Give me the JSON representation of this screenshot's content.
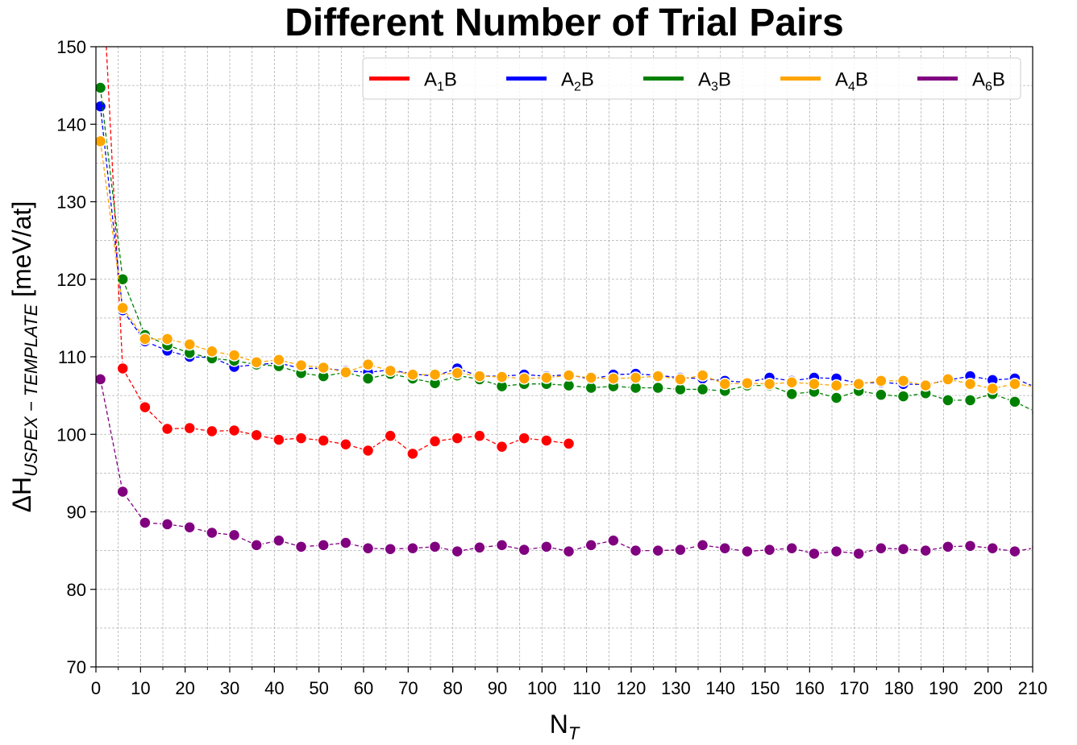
{
  "chart_data": {
    "type": "line",
    "title": "Different Number of Trial Pairs",
    "xlabel_main": "N",
    "xlabel_sub": "T",
    "ylabel_main": "ΔH",
    "ylabel_sub": "USPEX − TEMPLATE",
    "ylabel_unit": " [meV/at]",
    "xlim": [
      0,
      210
    ],
    "ylim": [
      70,
      150
    ],
    "xticks": [
      0,
      10,
      20,
      30,
      40,
      50,
      60,
      70,
      80,
      90,
      100,
      110,
      120,
      130,
      140,
      150,
      160,
      170,
      180,
      190,
      200,
      210
    ],
    "yticks": [
      70,
      80,
      90,
      100,
      110,
      120,
      130,
      140,
      150
    ],
    "grid": true,
    "legend_position": "top-right",
    "series": [
      {
        "name": "A1B",
        "label_main": "A",
        "label_sub": "1",
        "label_tail": "B",
        "color": "#ff0000",
        "x": [
          1,
          6,
          11,
          16,
          21,
          26,
          31,
          36,
          41,
          46,
          51,
          56,
          61,
          66,
          71,
          76,
          81,
          86,
          91,
          96,
          101,
          106
        ],
        "y": [
          165.0,
          108.5,
          103.5,
          100.7,
          100.8,
          100.4,
          100.5,
          99.9,
          99.3,
          99.5,
          99.2,
          98.7,
          97.9,
          99.8,
          97.5,
          99.1,
          99.5,
          99.8,
          98.4,
          99.5,
          99.2,
          98.8
        ]
      },
      {
        "name": "A2B",
        "label_main": "A",
        "label_sub": "2",
        "label_tail": "B",
        "color": "#0000ff",
        "x": [
          1,
          6,
          11,
          16,
          21,
          26,
          31,
          36,
          41,
          46,
          51,
          56,
          61,
          66,
          71,
          76,
          81,
          86,
          91,
          96,
          101,
          106,
          111,
          116,
          121,
          126,
          131,
          136,
          141,
          146,
          151,
          156,
          161,
          166,
          171,
          176,
          181,
          186,
          191,
          196,
          201,
          206,
          211
        ],
        "y": [
          142.3,
          116.0,
          112.0,
          110.8,
          110.0,
          109.9,
          108.7,
          109.0,
          109.2,
          108.5,
          108.5,
          108.2,
          108.0,
          108.3,
          107.8,
          107.5,
          108.5,
          107.5,
          107.5,
          107.7,
          107.5,
          107.7,
          107.1,
          107.7,
          107.8,
          107.6,
          107.3,
          107.2,
          106.9,
          106.7,
          107.3,
          106.9,
          107.3,
          107.2,
          106.6,
          106.7,
          106.5,
          106.4,
          107.0,
          107.5,
          107.0,
          107.2,
          106.0
        ]
      },
      {
        "name": "A3B",
        "label_main": "A",
        "label_sub": "3",
        "label_tail": "B",
        "color": "#008000",
        "x": [
          1,
          6,
          11,
          16,
          21,
          26,
          31,
          36,
          41,
          46,
          51,
          56,
          61,
          66,
          71,
          76,
          81,
          86,
          91,
          96,
          101,
          106,
          111,
          116,
          121,
          126,
          131,
          136,
          141,
          146,
          151,
          156,
          161,
          166,
          171,
          176,
          181,
          186,
          191,
          196,
          201,
          206,
          211
        ],
        "y": [
          144.7,
          120.0,
          112.8,
          111.5,
          110.5,
          109.8,
          109.5,
          109.0,
          108.8,
          107.9,
          107.5,
          108.0,
          107.2,
          107.8,
          107.2,
          106.6,
          107.6,
          107.1,
          106.2,
          106.5,
          106.5,
          106.3,
          106.0,
          106.2,
          106.0,
          106.0,
          105.8,
          105.8,
          105.6,
          106.3,
          106.3,
          105.2,
          105.5,
          104.7,
          105.6,
          105.1,
          104.9,
          105.3,
          104.4,
          104.4,
          105.2,
          104.2,
          102.8
        ]
      },
      {
        "name": "A4B",
        "label_main": "A",
        "label_sub": "4",
        "label_tail": "B",
        "color": "#ffa500",
        "x": [
          1,
          6,
          11,
          16,
          21,
          26,
          31,
          36,
          41,
          46,
          51,
          56,
          61,
          66,
          71,
          76,
          81,
          86,
          91,
          96,
          101,
          106,
          111,
          116,
          121,
          126,
          131,
          136,
          141,
          146,
          151,
          156,
          161,
          166,
          171,
          176,
          181,
          186,
          191,
          196,
          201,
          206,
          211
        ],
        "y": [
          137.8,
          116.3,
          112.3,
          112.3,
          111.6,
          110.7,
          110.2,
          109.3,
          109.6,
          108.9,
          108.6,
          108.0,
          109.0,
          108.2,
          107.7,
          107.7,
          107.9,
          107.5,
          107.4,
          107.2,
          107.3,
          107.6,
          107.3,
          107.2,
          107.3,
          107.5,
          107.1,
          107.6,
          106.5,
          106.6,
          106.5,
          106.7,
          106.5,
          106.3,
          106.5,
          106.9,
          106.9,
          106.3,
          107.1,
          106.5,
          105.9,
          106.5,
          106.1
        ]
      },
      {
        "name": "A6B",
        "label_main": "A",
        "label_sub": "6",
        "label_tail": "B",
        "color": "#800080",
        "x": [
          1,
          6,
          11,
          16,
          21,
          26,
          31,
          36,
          41,
          46,
          51,
          56,
          61,
          66,
          71,
          76,
          81,
          86,
          91,
          96,
          101,
          106,
          111,
          116,
          121,
          126,
          131,
          136,
          141,
          146,
          151,
          156,
          161,
          166,
          171,
          176,
          181,
          186,
          191,
          196,
          201,
          206,
          211
        ],
        "y": [
          107.1,
          92.6,
          88.6,
          88.4,
          88.0,
          87.3,
          87.0,
          85.7,
          86.3,
          85.5,
          85.7,
          86.0,
          85.3,
          85.2,
          85.3,
          85.5,
          84.9,
          85.4,
          85.7,
          85.1,
          85.5,
          84.9,
          85.7,
          86.3,
          85.0,
          85.0,
          85.1,
          85.7,
          85.3,
          84.9,
          85.1,
          85.3,
          84.6,
          84.9,
          84.6,
          85.3,
          85.2,
          85.0,
          85.5,
          85.6,
          85.3,
          84.9,
          85.4
        ]
      }
    ]
  }
}
